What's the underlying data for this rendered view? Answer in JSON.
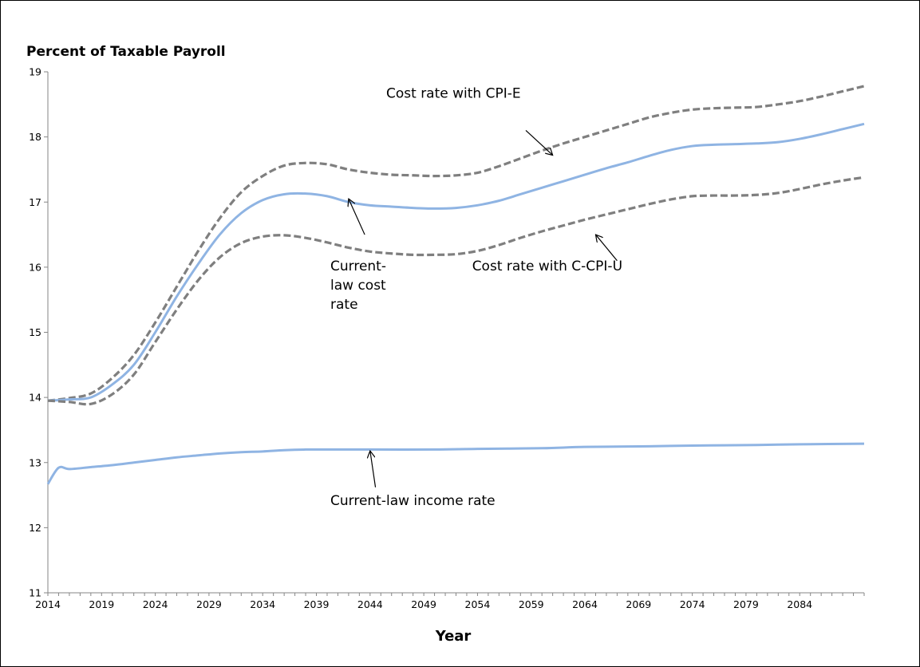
{
  "chart_data": {
    "type": "line",
    "title": "",
    "ylabel": "Percent of Taxable Payroll",
    "xlabel": "Year",
    "xlim": [
      2014,
      2090
    ],
    "ylim": [
      11,
      19
    ],
    "xticks": [
      2014,
      2019,
      2024,
      2029,
      2034,
      2039,
      2044,
      2049,
      2054,
      2059,
      2064,
      2069,
      2074,
      2079,
      2084
    ],
    "yticks": [
      11,
      12,
      13,
      14,
      15,
      16,
      17,
      18,
      19
    ],
    "grid": false,
    "legend": "none",
    "series": [
      {
        "name": "Cost rate with CPI-E",
        "style": "dashed",
        "color": "#7f7f7f",
        "points": [
          [
            2014,
            13.95
          ],
          [
            2016,
            13.99
          ],
          [
            2018,
            14.06
          ],
          [
            2020,
            14.3
          ],
          [
            2022,
            14.65
          ],
          [
            2024,
            15.15
          ],
          [
            2026,
            15.7
          ],
          [
            2028,
            16.25
          ],
          [
            2030,
            16.75
          ],
          [
            2032,
            17.15
          ],
          [
            2034,
            17.4
          ],
          [
            2036,
            17.56
          ],
          [
            2038,
            17.6
          ],
          [
            2040,
            17.58
          ],
          [
            2042,
            17.5
          ],
          [
            2044,
            17.45
          ],
          [
            2046,
            17.42
          ],
          [
            2048,
            17.41
          ],
          [
            2050,
            17.4
          ],
          [
            2052,
            17.41
          ],
          [
            2054,
            17.45
          ],
          [
            2056,
            17.55
          ],
          [
            2058,
            17.67
          ],
          [
            2060,
            17.79
          ],
          [
            2062,
            17.9
          ],
          [
            2064,
            18.0
          ],
          [
            2066,
            18.1
          ],
          [
            2068,
            18.2
          ],
          [
            2070,
            18.3
          ],
          [
            2072,
            18.37
          ],
          [
            2074,
            18.42
          ],
          [
            2076,
            18.44
          ],
          [
            2078,
            18.45
          ],
          [
            2080,
            18.46
          ],
          [
            2082,
            18.5
          ],
          [
            2084,
            18.55
          ],
          [
            2086,
            18.62
          ],
          [
            2088,
            18.7
          ],
          [
            2090,
            18.78
          ]
        ]
      },
      {
        "name": "Current-law cost rate",
        "style": "solid",
        "color": "#8fb4e3",
        "points": [
          [
            2014,
            13.95
          ],
          [
            2016,
            13.97
          ],
          [
            2018,
            14.0
          ],
          [
            2020,
            14.2
          ],
          [
            2022,
            14.5
          ],
          [
            2024,
            15.0
          ],
          [
            2026,
            15.55
          ],
          [
            2028,
            16.05
          ],
          [
            2030,
            16.5
          ],
          [
            2032,
            16.83
          ],
          [
            2034,
            17.03
          ],
          [
            2036,
            17.12
          ],
          [
            2038,
            17.13
          ],
          [
            2040,
            17.09
          ],
          [
            2042,
            17.0
          ],
          [
            2044,
            16.95
          ],
          [
            2046,
            16.93
          ],
          [
            2048,
            16.91
          ],
          [
            2050,
            16.9
          ],
          [
            2052,
            16.91
          ],
          [
            2054,
            16.95
          ],
          [
            2056,
            17.02
          ],
          [
            2058,
            17.12
          ],
          [
            2060,
            17.22
          ],
          [
            2062,
            17.32
          ],
          [
            2064,
            17.42
          ],
          [
            2066,
            17.52
          ],
          [
            2068,
            17.61
          ],
          [
            2070,
            17.71
          ],
          [
            2072,
            17.8
          ],
          [
            2074,
            17.86
          ],
          [
            2076,
            17.88
          ],
          [
            2078,
            17.89
          ],
          [
            2080,
            17.9
          ],
          [
            2082,
            17.92
          ],
          [
            2084,
            17.97
          ],
          [
            2086,
            18.04
          ],
          [
            2088,
            18.12
          ],
          [
            2090,
            18.2
          ]
        ]
      },
      {
        "name": "Cost rate with C-CPI-U",
        "style": "dashed",
        "color": "#7f7f7f",
        "points": [
          [
            2014,
            13.95
          ],
          [
            2016,
            13.93
          ],
          [
            2018,
            13.9
          ],
          [
            2020,
            14.05
          ],
          [
            2022,
            14.35
          ],
          [
            2024,
            14.85
          ],
          [
            2026,
            15.35
          ],
          [
            2028,
            15.8
          ],
          [
            2030,
            16.15
          ],
          [
            2032,
            16.37
          ],
          [
            2034,
            16.47
          ],
          [
            2036,
            16.49
          ],
          [
            2038,
            16.45
          ],
          [
            2040,
            16.38
          ],
          [
            2042,
            16.3
          ],
          [
            2044,
            16.24
          ],
          [
            2046,
            16.21
          ],
          [
            2048,
            16.19
          ],
          [
            2050,
            16.19
          ],
          [
            2052,
            16.2
          ],
          [
            2054,
            16.25
          ],
          [
            2056,
            16.34
          ],
          [
            2058,
            16.45
          ],
          [
            2060,
            16.55
          ],
          [
            2062,
            16.64
          ],
          [
            2064,
            16.73
          ],
          [
            2066,
            16.81
          ],
          [
            2068,
            16.89
          ],
          [
            2070,
            16.97
          ],
          [
            2072,
            17.04
          ],
          [
            2074,
            17.09
          ],
          [
            2076,
            17.1
          ],
          [
            2078,
            17.1
          ],
          [
            2080,
            17.11
          ],
          [
            2082,
            17.14
          ],
          [
            2084,
            17.2
          ],
          [
            2086,
            17.27
          ],
          [
            2088,
            17.33
          ],
          [
            2090,
            17.38
          ]
        ]
      },
      {
        "name": "Current-law income rate",
        "style": "solid",
        "color": "#8fb4e3",
        "points": [
          [
            2014,
            12.67
          ],
          [
            2015,
            12.92
          ],
          [
            2016,
            12.9
          ],
          [
            2018,
            12.93
          ],
          [
            2020,
            12.96
          ],
          [
            2022,
            13.0
          ],
          [
            2024,
            13.04
          ],
          [
            2026,
            13.08
          ],
          [
            2028,
            13.11
          ],
          [
            2030,
            13.14
          ],
          [
            2032,
            13.16
          ],
          [
            2034,
            13.17
          ],
          [
            2036,
            13.19
          ],
          [
            2038,
            13.2
          ],
          [
            2040,
            13.2
          ],
          [
            2044,
            13.2
          ],
          [
            2050,
            13.2
          ],
          [
            2054,
            13.21
          ],
          [
            2060,
            13.22
          ],
          [
            2064,
            13.24
          ],
          [
            2070,
            13.25
          ],
          [
            2074,
            13.26
          ],
          [
            2080,
            13.27
          ],
          [
            2084,
            13.28
          ],
          [
            2090,
            13.29
          ]
        ]
      }
    ],
    "annotations": [
      {
        "lines": [
          "Cost rate with CPI-E"
        ],
        "x": 2045.5,
        "y": 18.6,
        "anchor": "start",
        "arrow": [
          [
            2058.5,
            18.1
          ],
          [
            2061,
            17.72
          ]
        ]
      },
      {
        "lines": [
          "Current-",
          "law cost",
          "rate"
        ],
        "x": 2040.3,
        "y": 15.95,
        "anchor": "start",
        "arrow": [
          [
            2043.5,
            16.5
          ],
          [
            2042,
            17.05
          ]
        ]
      },
      {
        "lines": [
          "Cost rate with C-CPI-U"
        ],
        "x": 2053.5,
        "y": 15.95,
        "anchor": "start",
        "arrow": [
          [
            2067,
            16.1
          ],
          [
            2065,
            16.5
          ]
        ]
      },
      {
        "lines": [
          "Current-law income rate"
        ],
        "x": 2040.3,
        "y": 12.35,
        "anchor": "start",
        "arrow": [
          [
            2044.5,
            12.62
          ],
          [
            2044,
            13.18
          ]
        ]
      }
    ]
  }
}
